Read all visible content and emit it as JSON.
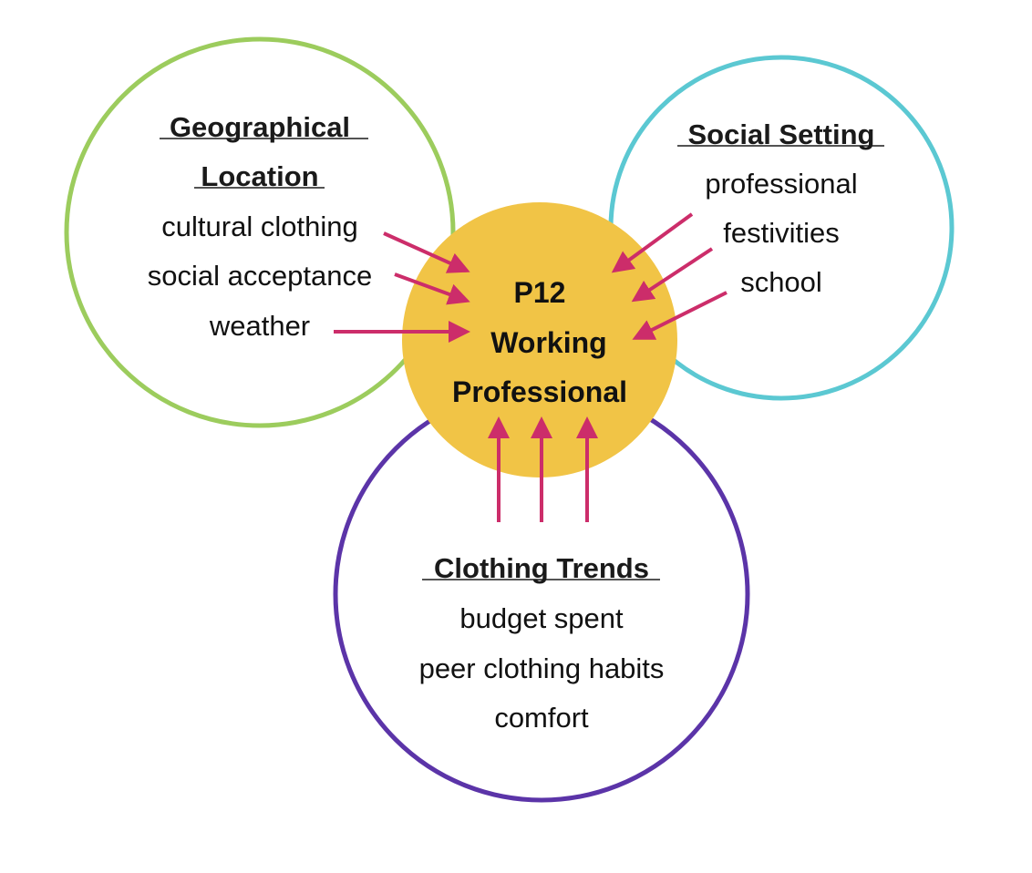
{
  "colors": {
    "geo_ring": "#9ccc5d",
    "social_ring": "#5bc8d2",
    "trends_ring": "#5b34a8",
    "center_fill": "#f1c446",
    "arrow": "#cc2d6a"
  },
  "geographical": {
    "title_line1": "Geographical",
    "title_line2": "Location",
    "items": [
      "cultural clothing",
      "social acceptance",
      "weather"
    ]
  },
  "social": {
    "title": "Social Setting",
    "items": [
      "professional",
      "festivities",
      "school"
    ]
  },
  "trends": {
    "title": "Clothing Trends",
    "items": [
      "budget spent",
      "peer clothing habits",
      "comfort"
    ]
  },
  "center": {
    "line1": "P12",
    "line2": "Working",
    "line3": "Professional"
  }
}
